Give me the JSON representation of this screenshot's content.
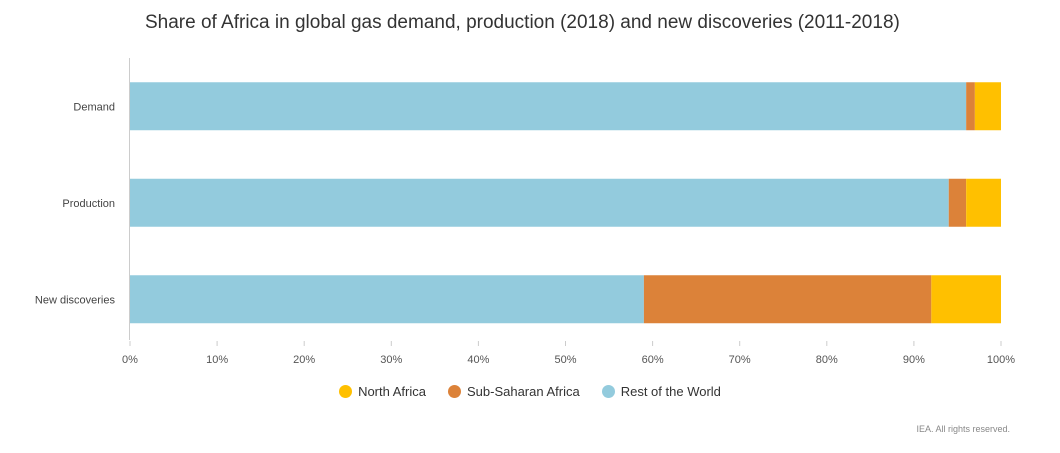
{
  "chart_data": {
    "type": "bar",
    "orientation": "horizontal",
    "stacked": true,
    "title": "Share of Africa in global gas demand, production (2018) and new discoveries (2011-2018)",
    "categories": [
      "Demand",
      "Production",
      "New discoveries"
    ],
    "series": [
      {
        "name": "Rest of the World",
        "color": "#93cbdd",
        "values": [
          96,
          94,
          59
        ]
      },
      {
        "name": "Sub-Saharan Africa",
        "color": "#dc8239",
        "values": [
          1,
          2,
          33
        ]
      },
      {
        "name": "North Africa",
        "color": "#ffc000",
        "values": [
          3,
          4,
          8
        ]
      }
    ],
    "xlim": [
      0,
      100
    ],
    "x_ticks": [
      "0%",
      "10%",
      "20%",
      "30%",
      "40%",
      "50%",
      "60%",
      "70%",
      "80%",
      "90%",
      "100%"
    ],
    "grid": false,
    "legend_position": "bottom"
  },
  "legend": [
    {
      "label": "North Africa",
      "color": "#ffc000"
    },
    {
      "label": "Sub-Saharan Africa",
      "color": "#dc8239"
    },
    {
      "label": "Rest of the World",
      "color": "#93cbdd"
    }
  ],
  "credits": "IEA. All rights reserved."
}
